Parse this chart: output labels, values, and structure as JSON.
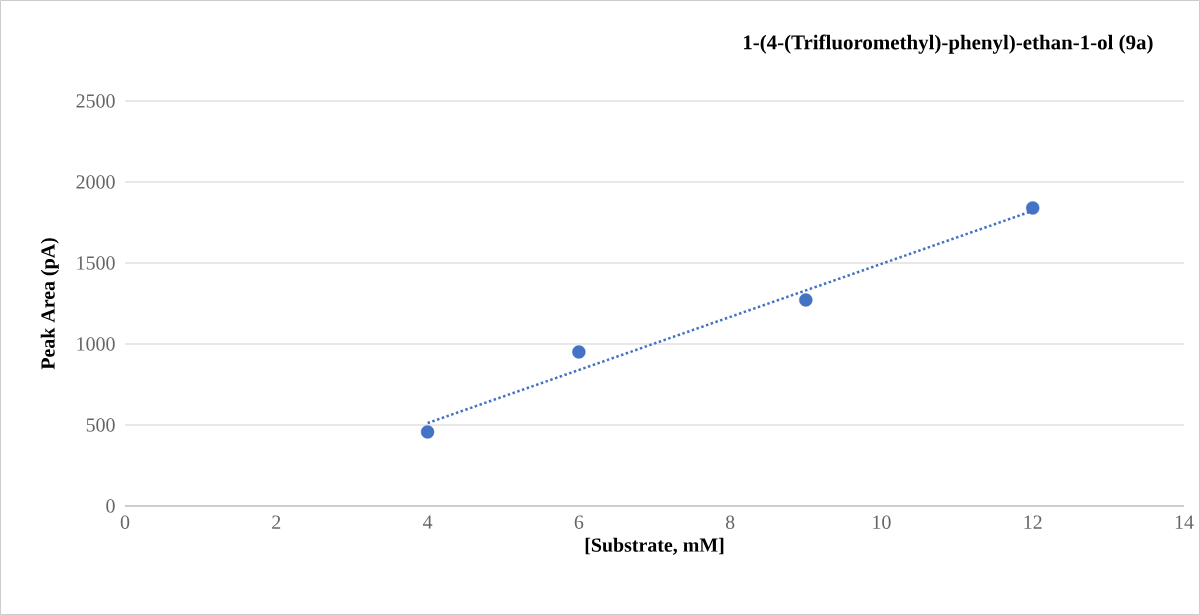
{
  "chart_data": {
    "type": "scatter",
    "title": "1-(4-(Trifluoromethyl)-phenyl)-ethan-1-ol (9a)",
    "xlabel": "[Substrate, mM]",
    "ylabel": "Peak Area (pA)",
    "series": [
      {
        "type": "scatter",
        "color": "#4472c4",
        "marker": "circle",
        "x": [
          4,
          6,
          9,
          12
        ],
        "values": [
          457,
          951,
          1272,
          1840
        ]
      },
      {
        "type": "line",
        "color": "#4472c4",
        "line_style": "dotted",
        "marker": "none",
        "x": [
          4,
          12
        ],
        "values": [
          512,
          1822
        ]
      }
    ],
    "xlim": [
      0,
      14
    ],
    "ylim": [
      0,
      2500
    ],
    "xticks": [
      0,
      2,
      4,
      6,
      8,
      10,
      12,
      14
    ],
    "yticks": [
      0,
      500,
      1000,
      1500,
      2000,
      2500
    ],
    "grid": "y"
  }
}
